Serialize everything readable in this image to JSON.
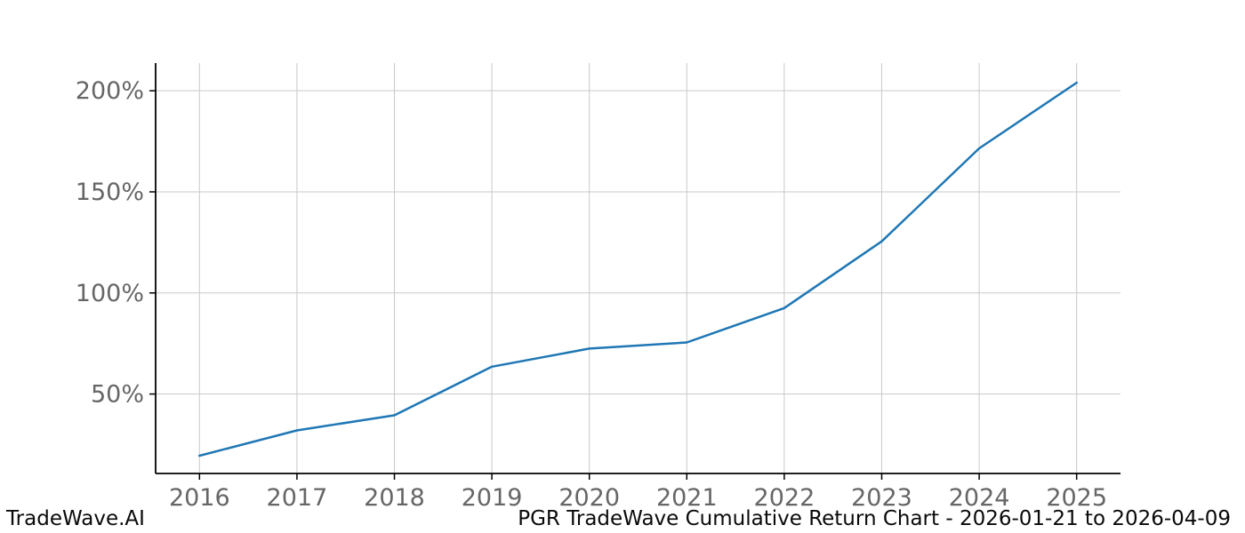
{
  "chart_data": {
    "type": "line",
    "x": [
      2016,
      2017,
      2018,
      2019,
      2020,
      2021,
      2022,
      2023,
      2024,
      2025
    ],
    "series": [
      {
        "name": "cumulative-return",
        "values": [
          19.5,
          32,
          39.5,
          63.5,
          72.5,
          75.5,
          92.5,
          125.5,
          171.5,
          204
        ]
      }
    ],
    "title": "PGR TradeWave Cumulative Return Chart - 2026-01-21 to 2026-04-09",
    "xlabel": "",
    "ylabel": "",
    "x_tick_labels": [
      "2016",
      "2017",
      "2018",
      "2019",
      "2020",
      "2021",
      "2022",
      "2023",
      "2024",
      "2025"
    ],
    "y_ticks": [
      50,
      100,
      150,
      200
    ],
    "y_tick_labels": [
      "50%",
      "100%",
      "150%",
      "200%"
    ],
    "xlim": [
      2015.55,
      2025.45
    ],
    "ylim": [
      10.7,
      213.7
    ],
    "grid": true,
    "legend": "none",
    "line_color": "#1f77b4",
    "grid_color": "#c9c9c9",
    "tick_label_color": "#666666",
    "spine_color": "#000000",
    "background_color": "#ffffff"
  },
  "footer": {
    "watermark": "TradeWave.AI",
    "title": "PGR TradeWave Cumulative Return Chart - 2026-01-21 to 2026-04-09"
  }
}
